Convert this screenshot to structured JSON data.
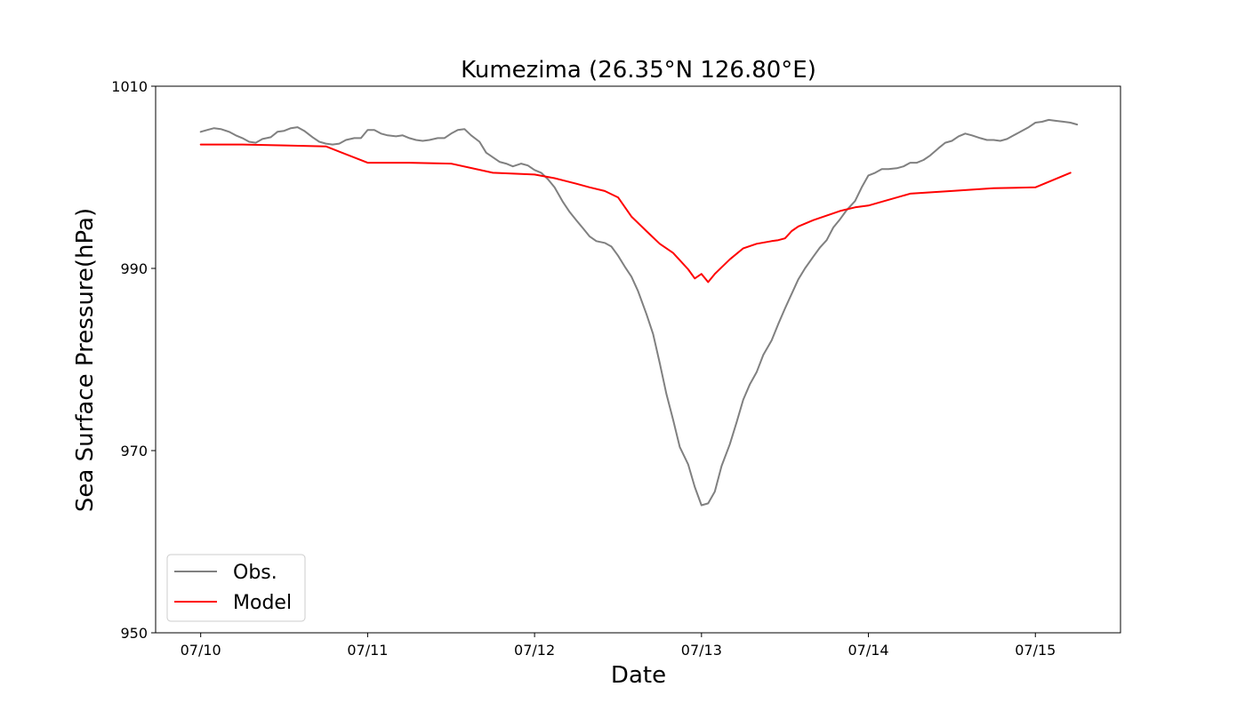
{
  "chart_data": {
    "type": "line",
    "title": "Kumezima (26.35°N 126.80°E)",
    "xlabel": "Date",
    "ylabel": "Sea Surface Pressure(hPa)",
    "xlim": [
      -0.27,
      5.51
    ],
    "ylim": [
      950,
      1010
    ],
    "x_ticks": [
      0,
      1,
      2,
      3,
      4,
      5
    ],
    "x_tick_labels": [
      "07/10",
      "07/11",
      "07/12",
      "07/13",
      "07/14",
      "07/15"
    ],
    "y_ticks": [
      950,
      970,
      990,
      1010
    ],
    "y_tick_labels": [
      "950",
      "970",
      "990",
      "1010"
    ],
    "x_unit": "days from 07/10 00:00",
    "grid": false,
    "legend_position": "lower-left",
    "series": [
      {
        "name": "Obs.",
        "color": "#808080",
        "x": [
          0.0,
          0.04,
          0.08,
          0.12,
          0.17,
          0.21,
          0.25,
          0.29,
          0.33,
          0.37,
          0.42,
          0.46,
          0.5,
          0.54,
          0.58,
          0.62,
          0.67,
          0.71,
          0.75,
          0.79,
          0.83,
          0.87,
          0.92,
          0.96,
          1.0,
          1.04,
          1.08,
          1.12,
          1.17,
          1.21,
          1.25,
          1.29,
          1.33,
          1.37,
          1.42,
          1.46,
          1.5,
          1.54,
          1.58,
          1.62,
          1.67,
          1.71,
          1.75,
          1.79,
          1.83,
          1.87,
          1.92,
          1.96,
          2.0,
          2.04,
          2.08,
          2.12,
          2.17,
          2.21,
          2.25,
          2.29,
          2.33,
          2.37,
          2.42,
          2.46,
          2.5,
          2.54,
          2.58,
          2.62,
          2.67,
          2.71,
          2.75,
          2.79,
          2.83,
          2.87,
          2.92,
          2.96,
          3.0,
          3.04,
          3.08,
          3.12,
          3.17,
          3.21,
          3.25,
          3.29,
          3.33,
          3.37,
          3.42,
          3.46,
          3.5,
          3.54,
          3.58,
          3.62,
          3.67,
          3.71,
          3.75,
          3.79,
          3.83,
          3.87,
          3.92,
          3.96,
          4.0,
          4.04,
          4.08,
          4.12,
          4.17,
          4.21,
          4.25,
          4.29,
          4.33,
          4.37,
          4.42,
          4.46,
          4.5,
          4.54,
          4.58,
          4.62,
          4.67,
          4.71,
          4.75,
          4.79,
          4.83,
          4.87,
          4.92,
          4.96,
          5.0,
          5.04,
          5.08,
          5.12,
          5.17,
          5.21,
          5.25
        ],
        "y": [
          1005.0,
          1005.2,
          1005.4,
          1005.3,
          1005.0,
          1004.6,
          1004.3,
          1003.9,
          1003.8,
          1004.2,
          1004.4,
          1005.0,
          1005.1,
          1005.4,
          1005.5,
          1005.1,
          1004.4,
          1003.9,
          1003.7,
          1003.6,
          1003.7,
          1004.1,
          1004.3,
          1004.3,
          1005.2,
          1005.2,
          1004.8,
          1004.6,
          1004.5,
          1004.6,
          1004.3,
          1004.1,
          1004.0,
          1004.1,
          1004.3,
          1004.3,
          1004.8,
          1005.2,
          1005.3,
          1004.6,
          1003.9,
          1002.7,
          1002.2,
          1001.7,
          1001.5,
          1001.2,
          1001.5,
          1001.3,
          1000.8,
          1000.5,
          999.8,
          998.9,
          997.3,
          996.2,
          995.3,
          994.4,
          993.5,
          993.0,
          992.8,
          992.4,
          991.4,
          990.2,
          989.1,
          987.5,
          985.0,
          982.8,
          979.6,
          976.2,
          973.4,
          970.4,
          968.5,
          966.0,
          964.0,
          964.2,
          965.5,
          968.3,
          970.7,
          973.1,
          975.6,
          977.3,
          978.6,
          980.5,
          982.1,
          983.9,
          985.6,
          987.2,
          988.8,
          990.0,
          991.3,
          992.3,
          993.1,
          994.5,
          995.4,
          996.4,
          997.4,
          998.9,
          1000.2,
          1000.5,
          1000.9,
          1000.9,
          1001.0,
          1001.2,
          1001.6,
          1001.6,
          1001.9,
          1002.4,
          1003.2,
          1003.8,
          1004.0,
          1004.5,
          1004.8,
          1004.6,
          1004.3,
          1004.1,
          1004.1,
          1004.0,
          1004.2,
          1004.6,
          1005.1,
          1005.5,
          1006.0,
          1006.1,
          1006.3,
          1006.2,
          1006.1,
          1006.0,
          1005.8
        ]
      },
      {
        "name": "Model",
        "color": "#ff0000",
        "x": [
          0.0,
          0.25,
          0.5,
          0.75,
          1.0,
          1.25,
          1.5,
          1.75,
          2.0,
          2.12,
          2.25,
          2.33,
          2.42,
          2.5,
          2.58,
          2.67,
          2.75,
          2.83,
          2.92,
          2.96,
          3.0,
          3.04,
          3.08,
          3.17,
          3.25,
          3.33,
          3.42,
          3.46,
          3.5,
          3.54,
          3.58,
          3.67,
          3.75,
          3.83,
          3.92,
          4.0,
          4.25,
          4.5,
          4.75,
          5.0,
          5.21
        ],
        "y": [
          1003.6,
          1003.6,
          1003.5,
          1003.4,
          1001.6,
          1001.6,
          1001.5,
          1000.5,
          1000.3,
          999.9,
          999.3,
          998.9,
          998.5,
          997.8,
          995.7,
          994.1,
          992.7,
          991.7,
          989.9,
          988.9,
          989.4,
          988.5,
          989.4,
          991.0,
          992.2,
          992.7,
          993.0,
          993.1,
          993.3,
          994.1,
          994.6,
          995.3,
          995.8,
          996.3,
          996.7,
          996.9,
          998.2,
          998.5,
          998.8,
          998.9,
          1000.5
        ]
      }
    ]
  }
}
